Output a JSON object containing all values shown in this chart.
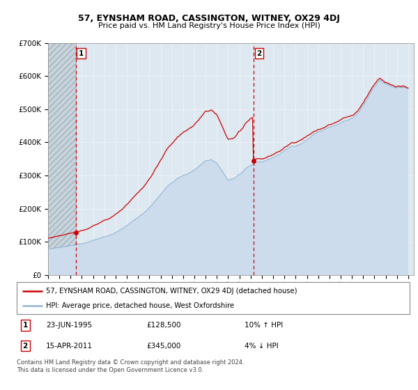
{
  "title": "57, EYNSHAM ROAD, CASSINGTON, WITNEY, OX29 4DJ",
  "subtitle": "Price paid vs. HM Land Registry's House Price Index (HPI)",
  "legend_line1": "57, EYNSHAM ROAD, CASSINGTON, WITNEY, OX29 4DJ (detached house)",
  "legend_line2": "HPI: Average price, detached house, West Oxfordshire",
  "footnote": "Contains HM Land Registry data © Crown copyright and database right 2024.\nThis data is licensed under the Open Government Licence v3.0.",
  "transaction1_date": "23-JUN-1995",
  "transaction1_price": "£128,500",
  "transaction1_hpi": "10% ↑ HPI",
  "transaction1_date_num": 1995.47,
  "transaction1_price_num": 128500,
  "transaction2_date": "15-APR-2011",
  "transaction2_price": "£345,000",
  "transaction2_hpi": "4% ↓ HPI",
  "transaction2_date_num": 2011.29,
  "transaction2_price_num": 345000,
  "hpi_color": "#92b4d4",
  "price_color": "#cc0000",
  "vline_color": "#cc0000",
  "chart_bg": "#dde8f0",
  "hatch_color": "#c8d4dc",
  "ylim": [
    0,
    700000
  ],
  "xlim_start": 1993.0,
  "xlim_end": 2025.5,
  "yticks": [
    0,
    100000,
    200000,
    300000,
    400000,
    500000,
    600000,
    700000
  ]
}
